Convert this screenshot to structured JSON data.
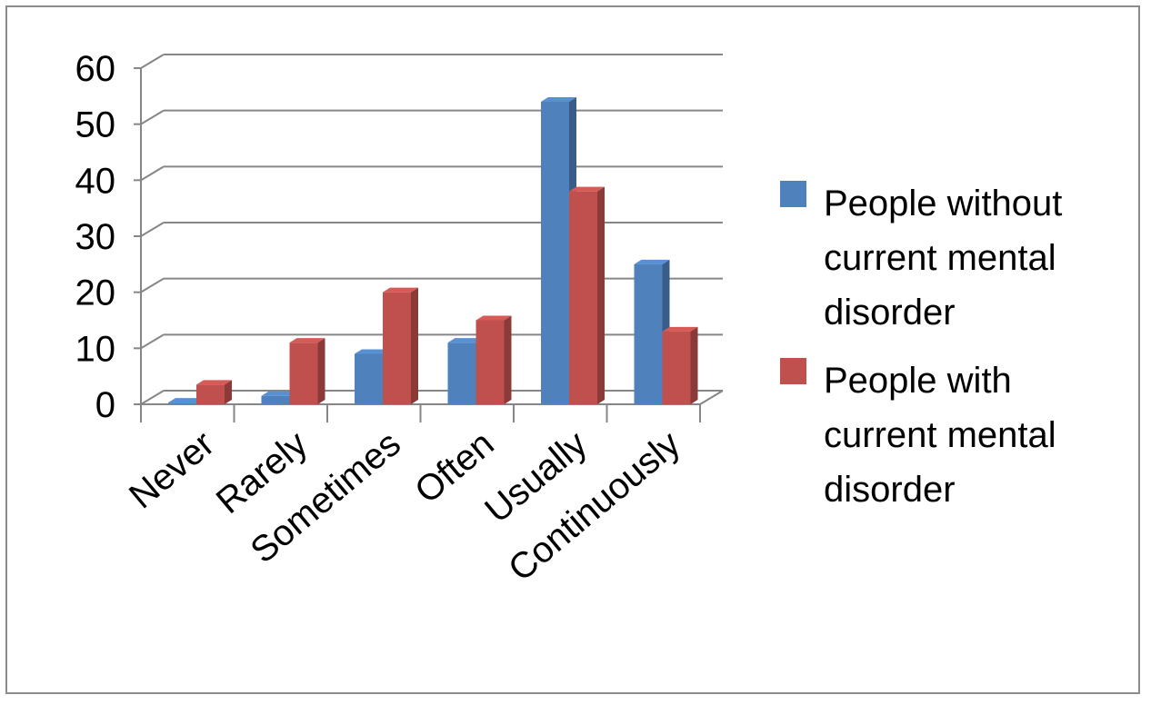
{
  "chart_data": {
    "type": "bar",
    "style": "3d-clustered-column",
    "categories": [
      "Never",
      "Rarely",
      "Sometimes",
      "Often",
      "Usually",
      "Continuously"
    ],
    "series": [
      {
        "name": "People without current mental disorder",
        "color": "#4f81bd",
        "values": [
          0.3,
          1.5,
          9,
          11,
          54,
          25
        ]
      },
      {
        "name": "People with current mental disorder",
        "color": "#c0504d",
        "values": [
          3.5,
          11,
          20,
          15,
          38,
          13
        ]
      }
    ],
    "ylim": [
      0,
      60
    ],
    "yticks": [
      0,
      10,
      20,
      30,
      40,
      50,
      60
    ],
    "grid": true,
    "legend": "right",
    "legend_lines": [
      [
        "People without",
        "current mental",
        "disorder"
      ],
      [
        "People with",
        "current mental",
        "disorder"
      ]
    ]
  }
}
